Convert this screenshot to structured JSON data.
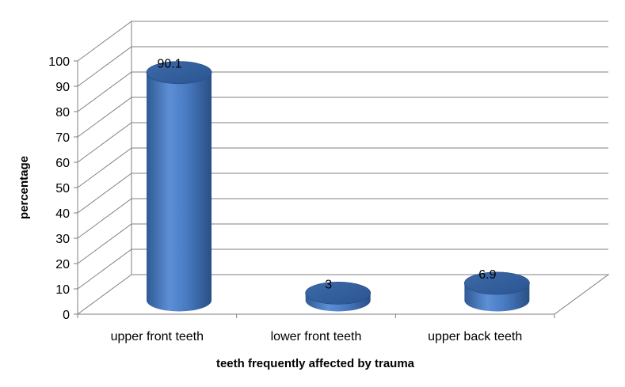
{
  "chart_data": {
    "type": "bar",
    "style": "3d-cylinder",
    "categories": [
      "upper front teeth",
      "lower front teeth",
      "upper back teeth"
    ],
    "series": [
      {
        "values": [
          90.1,
          3,
          6.9
        ],
        "color": "#4f81bd"
      }
    ],
    "data_labels": [
      "90.1",
      "3",
      "6.9"
    ],
    "title": "",
    "xlabel": "teeth frequently affected by trauma",
    "ylabel": "percentage",
    "ylim": [
      0,
      100
    ],
    "yticks": [
      "0",
      "10",
      "20",
      "30",
      "40",
      "50",
      "60",
      "70",
      "80",
      "90",
      "100"
    ],
    "grid": true,
    "legend": "none"
  }
}
